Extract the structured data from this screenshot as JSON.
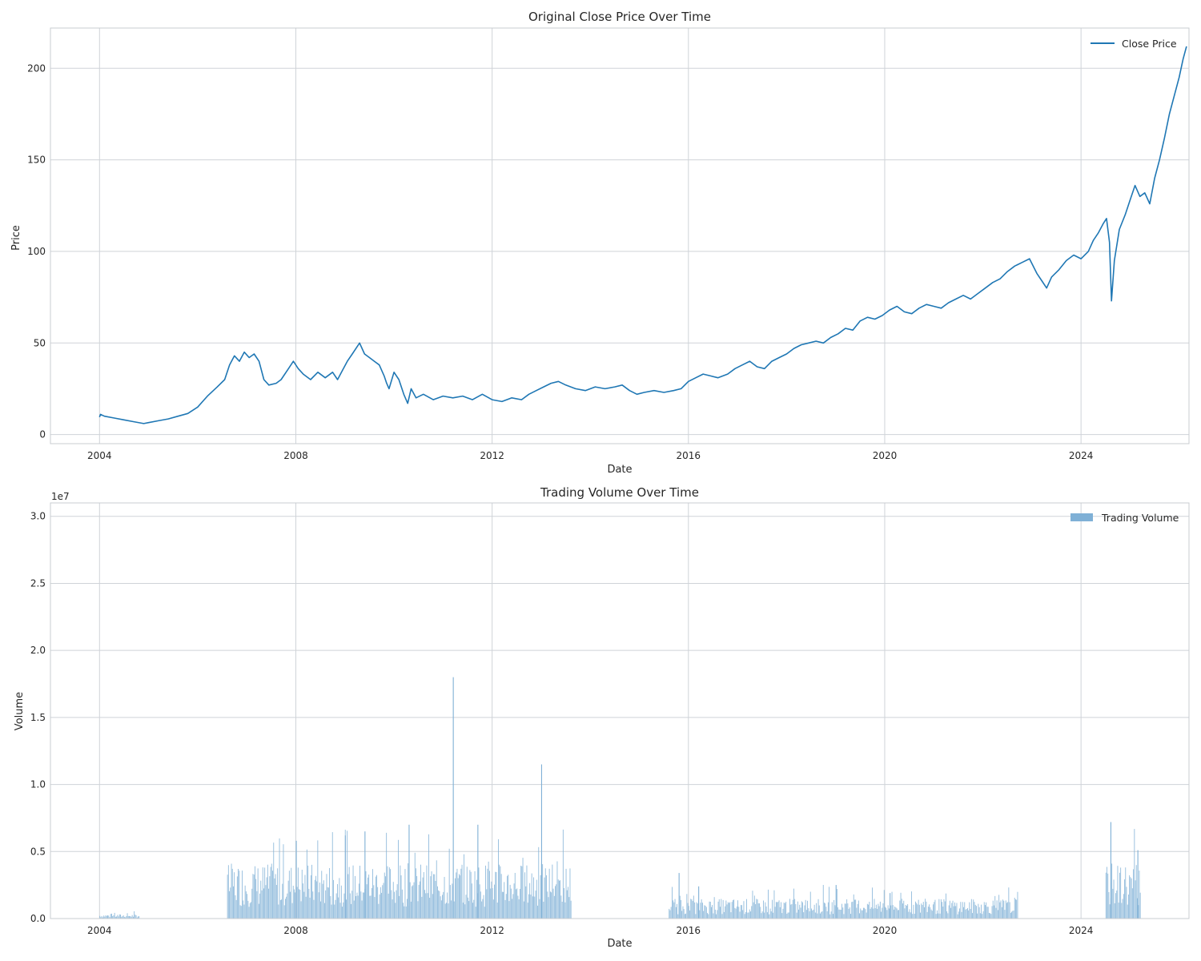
{
  "chart_data": [
    {
      "type": "line",
      "title": "Original Close Price Over Time",
      "xlabel": "Date",
      "ylabel": "Price",
      "xlim": [
        2003.0,
        2026.2
      ],
      "ylim": [
        -5,
        222
      ],
      "xticks": [
        2004,
        2008,
        2012,
        2016,
        2020,
        2024
      ],
      "yticks": [
        0,
        50,
        100,
        150,
        200
      ],
      "grid": true,
      "legend_placement": "top-right",
      "series": [
        {
          "name": "Close Price",
          "color": "#1f77b4",
          "points": [
            [
              2004.0,
              9.5
            ],
            [
              2004.02,
              11.0
            ],
            [
              2004.1,
              10.0
            ],
            [
              2004.3,
              9.0
            ],
            [
              2004.5,
              8.0
            ],
            [
              2004.7,
              7.0
            ],
            [
              2004.9,
              6.0
            ],
            [
              2005.0,
              6.5
            ],
            [
              2005.2,
              7.5
            ],
            [
              2005.4,
              8.5
            ],
            [
              2005.6,
              10.0
            ],
            [
              2005.8,
              11.5
            ],
            [
              2006.0,
              15.0
            ],
            [
              2006.2,
              21.0
            ],
            [
              2006.4,
              26.0
            ],
            [
              2006.55,
              30.0
            ],
            [
              2006.65,
              38.0
            ],
            [
              2006.75,
              43.0
            ],
            [
              2006.85,
              40.0
            ],
            [
              2006.95,
              45.0
            ],
            [
              2007.05,
              42.0
            ],
            [
              2007.15,
              44.0
            ],
            [
              2007.25,
              40.0
            ],
            [
              2007.35,
              30.0
            ],
            [
              2007.45,
              27.0
            ],
            [
              2007.6,
              28.0
            ],
            [
              2007.7,
              30.0
            ],
            [
              2007.85,
              36.0
            ],
            [
              2007.95,
              40.0
            ],
            [
              2008.05,
              36.0
            ],
            [
              2008.15,
              33.0
            ],
            [
              2008.3,
              30.0
            ],
            [
              2008.45,
              34.0
            ],
            [
              2008.6,
              31.0
            ],
            [
              2008.75,
              34.0
            ],
            [
              2008.85,
              30.0
            ],
            [
              2008.95,
              35.0
            ],
            [
              2009.05,
              40.0
            ],
            [
              2009.15,
              44.0
            ],
            [
              2009.25,
              48.0
            ],
            [
              2009.3,
              50.0
            ],
            [
              2009.4,
              44.0
            ],
            [
              2009.5,
              42.0
            ],
            [
              2009.6,
              40.0
            ],
            [
              2009.7,
              38.0
            ],
            [
              2009.8,
              32.0
            ],
            [
              2009.85,
              28.0
            ],
            [
              2009.9,
              25.0
            ],
            [
              2010.0,
              34.0
            ],
            [
              2010.1,
              30.0
            ],
            [
              2010.2,
              22.0
            ],
            [
              2010.28,
              17.0
            ],
            [
              2010.35,
              25.0
            ],
            [
              2010.45,
              20.0
            ],
            [
              2010.6,
              22.0
            ],
            [
              2010.8,
              19.0
            ],
            [
              2011.0,
              21.0
            ],
            [
              2011.2,
              20.0
            ],
            [
              2011.4,
              21.0
            ],
            [
              2011.6,
              19.0
            ],
            [
              2011.8,
              22.0
            ],
            [
              2012.0,
              19.0
            ],
            [
              2012.2,
              18.0
            ],
            [
              2012.4,
              20.0
            ],
            [
              2012.6,
              19.0
            ],
            [
              2012.75,
              22.0
            ],
            [
              2012.9,
              24.0
            ],
            [
              2013.05,
              26.0
            ],
            [
              2013.2,
              28.0
            ],
            [
              2013.35,
              29.0
            ],
            [
              2013.5,
              27.0
            ],
            [
              2013.7,
              25.0
            ],
            [
              2013.9,
              24.0
            ],
            [
              2014.1,
              26.0
            ],
            [
              2014.3,
              25.0
            ],
            [
              2014.5,
              26.0
            ],
            [
              2014.65,
              27.0
            ],
            [
              2014.8,
              24.0
            ],
            [
              2014.95,
              22.0
            ],
            [
              2015.1,
              23.0
            ],
            [
              2015.3,
              24.0
            ],
            [
              2015.5,
              23.0
            ],
            [
              2015.7,
              24.0
            ],
            [
              2015.85,
              25.0
            ],
            [
              2016.0,
              29.0
            ],
            [
              2016.15,
              31.0
            ],
            [
              2016.3,
              33.0
            ],
            [
              2016.45,
              32.0
            ],
            [
              2016.6,
              31.0
            ],
            [
              2016.8,
              33.0
            ],
            [
              2016.95,
              36.0
            ],
            [
              2017.1,
              38.0
            ],
            [
              2017.25,
              40.0
            ],
            [
              2017.4,
              37.0
            ],
            [
              2017.55,
              36.0
            ],
            [
              2017.7,
              40.0
            ],
            [
              2017.85,
              42.0
            ],
            [
              2018.0,
              44.0
            ],
            [
              2018.15,
              47.0
            ],
            [
              2018.3,
              49.0
            ],
            [
              2018.45,
              50.0
            ],
            [
              2018.6,
              51.0
            ],
            [
              2018.75,
              50.0
            ],
            [
              2018.9,
              53.0
            ],
            [
              2019.05,
              55.0
            ],
            [
              2019.2,
              58.0
            ],
            [
              2019.35,
              57.0
            ],
            [
              2019.5,
              62.0
            ],
            [
              2019.65,
              64.0
            ],
            [
              2019.8,
              63.0
            ],
            [
              2019.95,
              65.0
            ],
            [
              2020.1,
              68.0
            ],
            [
              2020.25,
              70.0
            ],
            [
              2020.4,
              67.0
            ],
            [
              2020.55,
              66.0
            ],
            [
              2020.7,
              69.0
            ],
            [
              2020.85,
              71.0
            ],
            [
              2021.0,
              70.0
            ],
            [
              2021.15,
              69.0
            ],
            [
              2021.3,
              72.0
            ],
            [
              2021.45,
              74.0
            ],
            [
              2021.6,
              76.0
            ],
            [
              2021.75,
              74.0
            ],
            [
              2021.9,
              77.0
            ],
            [
              2022.05,
              80.0
            ],
            [
              2022.2,
              83.0
            ],
            [
              2022.35,
              85.0
            ],
            [
              2022.5,
              89.0
            ],
            [
              2022.65,
              92.0
            ],
            [
              2022.8,
              94.0
            ],
            [
              2022.95,
              96.0
            ],
            [
              2023.1,
              88.0
            ],
            [
              2023.2,
              84.0
            ],
            [
              2023.3,
              80.0
            ],
            [
              2023.4,
              86.0
            ],
            [
              2023.55,
              90.0
            ],
            [
              2023.7,
              95.0
            ],
            [
              2023.85,
              98.0
            ],
            [
              2024.0,
              96.0
            ],
            [
              2024.15,
              100.0
            ],
            [
              2024.25,
              106.0
            ],
            [
              2024.35,
              110.0
            ],
            [
              2024.45,
              115.0
            ],
            [
              2024.52,
              118.0
            ],
            [
              2024.58,
              105.0
            ],
            [
              2024.62,
              73.0
            ],
            [
              2024.68,
              95.0
            ],
            [
              2024.78,
              112.0
            ],
            [
              2024.9,
              120.0
            ],
            [
              2025.0,
              128.0
            ],
            [
              2025.1,
              136.0
            ],
            [
              2025.2,
              130.0
            ],
            [
              2025.3,
              132.0
            ],
            [
              2025.4,
              126.0
            ],
            [
              2025.5,
              140.0
            ],
            [
              2025.6,
              150.0
            ],
            [
              2025.7,
              162.0
            ],
            [
              2025.8,
              175.0
            ],
            [
              2025.9,
              185.0
            ],
            [
              2026.0,
              195.0
            ],
            [
              2026.08,
              205.0
            ],
            [
              2026.15,
              212.0
            ]
          ]
        }
      ]
    },
    {
      "type": "bar",
      "title": "Trading Volume Over Time",
      "xlabel": "Date",
      "ylabel": "Volume",
      "offset_label": "1e7",
      "xlim": [
        2003.0,
        2026.2
      ],
      "ylim": [
        0,
        3.1
      ],
      "xticks": [
        2004,
        2008,
        2012,
        2016,
        2020,
        2024
      ],
      "yticks": [
        0.0,
        0.5,
        1.0,
        1.5,
        2.0,
        2.5,
        3.0
      ],
      "grid": true,
      "legend_placement": "top-right",
      "series": [
        {
          "name": "Trading Volume",
          "color": "#7fb0d6",
          "segments": [
            {
              "start": 2004.0,
              "end": 2004.8,
              "level": 0.02,
              "peaks": []
            },
            {
              "start": 2006.6,
              "end": 2013.6,
              "level": 0.25,
              "peaks": [
                [
                  2008.0,
                  0.58
                ],
                [
                  2009.0,
                  0.62
                ],
                [
                  2009.4,
                  0.65
                ],
                [
                  2010.3,
                  0.7
                ],
                [
                  2011.2,
                  1.8
                ],
                [
                  2011.7,
                  0.7
                ],
                [
                  2013.0,
                  1.15
                ]
              ]
            },
            {
              "start": 2015.6,
              "end": 2022.7,
              "level": 0.09,
              "peaks": [
                [
                  2015.8,
                  0.34
                ],
                [
                  2016.2,
                  0.24
                ],
                [
                  2019.0,
                  0.25
                ],
                [
                  2020.1,
                  0.19
                ]
              ]
            },
            {
              "start": 2024.5,
              "end": 2025.2,
              "level": 0.25,
              "peaks": [
                [
                  2024.6,
                  0.72
                ],
                [
                  2025.15,
                  0.51
                ]
              ]
            }
          ]
        }
      ]
    }
  ]
}
